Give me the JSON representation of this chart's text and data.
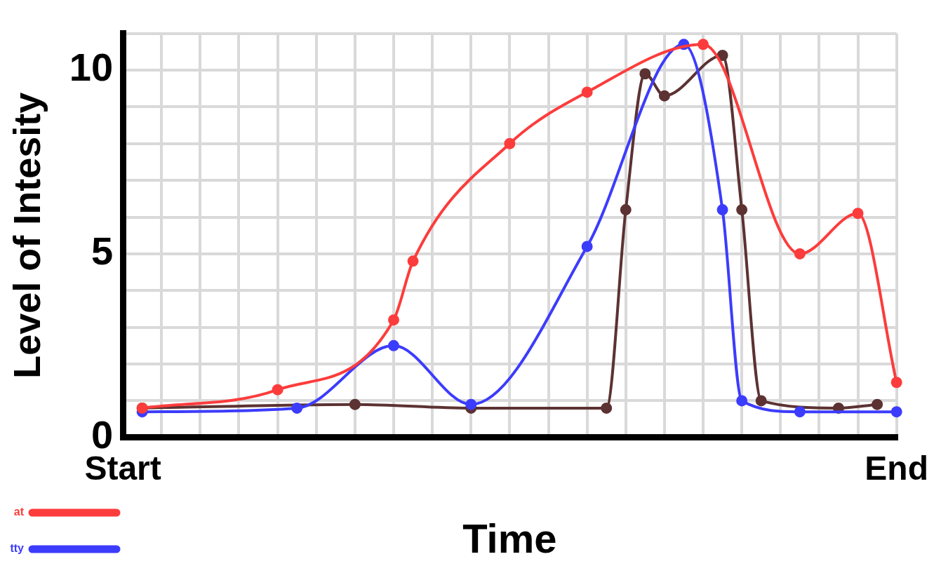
{
  "chart_data": {
    "type": "line",
    "xlabel": "Time",
    "ylabel": "Level of Intesity",
    "categories": [
      "Start",
      null,
      null,
      null,
      null,
      null,
      null,
      null,
      null,
      null,
      null,
      null,
      null,
      null,
      null,
      null,
      null,
      null,
      null,
      null,
      null,
      null,
      null,
      null,
      null,
      null,
      null,
      null,
      null,
      null,
      null,
      null,
      null,
      null,
      null,
      null,
      null,
      null,
      null,
      null,
      "End"
    ],
    "series": [
      {
        "name": "at",
        "color": "#fc3c3c",
        "values": [
          null,
          0.8,
          null,
          null,
          null,
          null,
          null,
          null,
          1.3,
          null,
          null,
          null,
          null,
          null,
          3.2,
          4.8,
          null,
          null,
          null,
          null,
          8.0,
          null,
          null,
          null,
          9.4,
          null,
          null,
          null,
          null,
          null,
          10.7,
          null,
          null,
          null,
          null,
          5.0,
          null,
          null,
          6.1,
          null,
          1.5
        ]
      },
      {
        "name": "tty",
        "color": "#3c3cfc",
        "values": [
          null,
          0.7,
          null,
          null,
          null,
          null,
          null,
          null,
          null,
          0.8,
          null,
          null,
          null,
          null,
          2.5,
          null,
          null,
          null,
          0.9,
          null,
          null,
          null,
          null,
          null,
          5.2,
          null,
          null,
          null,
          null,
          10.7,
          null,
          6.2,
          1.0,
          null,
          null,
          0.7,
          null,
          null,
          null,
          null,
          0.7
        ]
      },
      {
        "color": "#5c3232",
        "values": [
          null,
          0.8,
          null,
          null,
          null,
          null,
          null,
          null,
          null,
          null,
          null,
          null,
          0.9,
          null,
          null,
          null,
          null,
          null,
          0.8,
          null,
          null,
          null,
          null,
          null,
          null,
          0.8,
          6.2,
          9.9,
          9.3,
          null,
          null,
          10.4,
          6.2,
          1.0,
          null,
          null,
          null,
          0.8,
          null,
          0.9,
          null
        ]
      }
    ],
    "ylim": [
      0,
      11
    ],
    "yticks": [
      0,
      {
        "value": 1,
        "label": null
      },
      {
        "value": 2,
        "label": null
      },
      {
        "value": 3,
        "label": null
      },
      {
        "value": 4,
        "label": null
      },
      5,
      {
        "value": 6,
        "label": null
      },
      {
        "value": 7,
        "label": null
      },
      {
        "value": 8,
        "label": null
      },
      {
        "value": 9,
        "label": null
      },
      10,
      {
        "value": 11,
        "label": null
      }
    ],
    "grid": true,
    "legend": "bottom left",
    "marker": "circle",
    "line_style": "solid"
  }
}
